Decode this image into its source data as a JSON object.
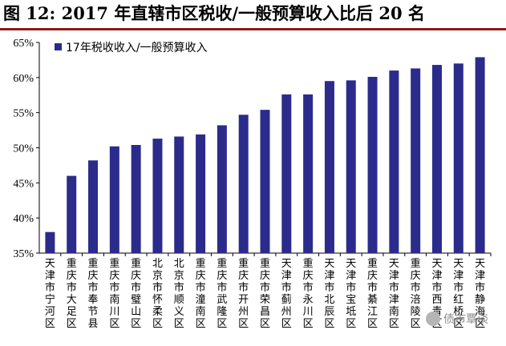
{
  "title": "图 12:  2017 年直辖市区税收/一般预算收入比后 20 名",
  "watermark": "债市覃谈",
  "chart_data": {
    "type": "bar",
    "series": [
      {
        "name": "17年税收收入/一般预算收入",
        "color": "#2b2b8c",
        "values": [
          38.0,
          46.0,
          48.2,
          50.2,
          50.4,
          51.3,
          51.6,
          51.9,
          53.2,
          54.7,
          55.4,
          57.6,
          57.6,
          59.5,
          59.6,
          60.1,
          61.0,
          61.3,
          61.8,
          62.0,
          62.9
        ]
      }
    ],
    "categories": [
      "天津市宁河区",
      "重庆市大足区",
      "重庆市奉节县",
      "重庆市南川区",
      "重庆市璧山区",
      "北京市怀柔区",
      "北京市顺义区",
      "重庆市潼南区",
      "重庆市武隆区",
      "重庆市开州区",
      "重庆市荣昌区",
      "天津市蓟州区",
      "重庆市永川区",
      "天津市北辰区",
      "天津市宝坻区",
      "重庆市綦江区",
      "天津市津南区",
      "重庆市涪陵区",
      "天津市西青区",
      "天津市红桥区",
      "天津市静海区"
    ],
    "ylim": [
      35,
      65
    ],
    "yticks": [
      35,
      40,
      45,
      50,
      55,
      60,
      65
    ],
    "ytick_labels": [
      "35%",
      "40%",
      "45%",
      "50%",
      "55%",
      "60%",
      "65%"
    ],
    "legend_position": "top-left",
    "grid": false
  }
}
